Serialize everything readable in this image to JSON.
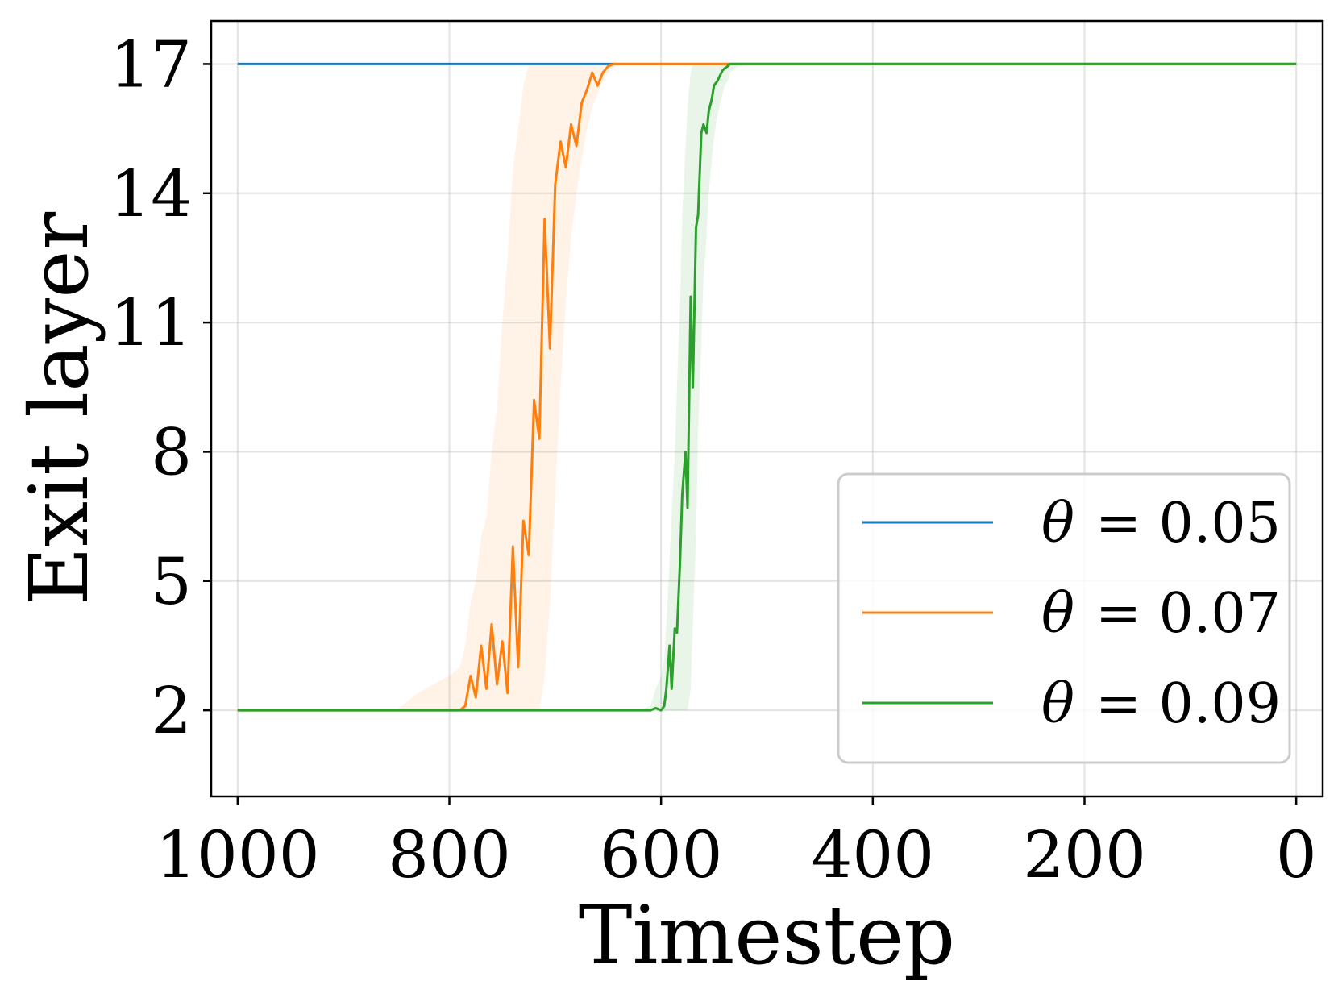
{
  "chart_data": {
    "type": "line",
    "xlabel": "Timestep",
    "ylabel": "Exit layer",
    "xlim": [
      1025,
      -25
    ],
    "ylim": [
      0,
      18
    ],
    "x_reversed": true,
    "xticks": [
      1000,
      800,
      600,
      400,
      200,
      0
    ],
    "xtick_labels": [
      "1000",
      "800",
      "600",
      "400",
      "200",
      "0"
    ],
    "yticks": [
      2,
      5,
      8,
      11,
      14,
      17
    ],
    "ytick_labels": [
      "2",
      "5",
      "8",
      "11",
      "14",
      "17"
    ],
    "grid": true,
    "legend_position": "lower-right",
    "series": [
      {
        "name": "θ = 0.05",
        "legend_symbol": "θ",
        "legend_value": "= 0.05",
        "color": "#1f77b4",
        "x": [
          1000,
          0
        ],
        "y": [
          17,
          17
        ]
      },
      {
        "name": "θ = 0.07",
        "legend_symbol": "θ",
        "legend_value": "= 0.07",
        "color": "#ff7f0e",
        "band_color": "#ff7f0e",
        "x": [
          1000,
          850,
          830,
          815,
          800,
          790,
          785,
          780,
          775,
          770,
          765,
          760,
          755,
          750,
          745,
          740,
          735,
          730,
          725,
          720,
          715,
          710,
          705,
          700,
          695,
          690,
          685,
          680,
          675,
          670,
          665,
          660,
          655,
          650,
          645,
          640,
          630,
          620,
          600,
          500,
          0
        ],
        "y": [
          2,
          2,
          2,
          2,
          2,
          2,
          2.1,
          2.8,
          2.3,
          3.5,
          2.5,
          4.0,
          2.6,
          3.6,
          2.4,
          5.8,
          3.0,
          6.4,
          5.6,
          9.2,
          8.3,
          13.4,
          10.4,
          14.2,
          15.2,
          14.6,
          15.6,
          15.1,
          16.1,
          16.4,
          16.8,
          16.5,
          16.8,
          16.95,
          17,
          17,
          17,
          17,
          17,
          17,
          17
        ],
        "band_upper": [
          2,
          2,
          2.4,
          2.6,
          2.8,
          3.0,
          3.5,
          4.5,
          5.0,
          6.0,
          6.5,
          8.0,
          9.0,
          11.0,
          12.5,
          14.5,
          15.5,
          16.5,
          17,
          17,
          17,
          17,
          17,
          17,
          17,
          17,
          17,
          17,
          17,
          17,
          17,
          17,
          17,
          17,
          17,
          17,
          17,
          17,
          17,
          17,
          17
        ],
        "band_lower": [
          2,
          2,
          2,
          2,
          2,
          2,
          2,
          2,
          2,
          2,
          2,
          2,
          2,
          2,
          2,
          2,
          2,
          2,
          2,
          2,
          2,
          2.8,
          4.5,
          7.0,
          9.5,
          11.5,
          13.0,
          14.0,
          14.8,
          15.5,
          16.0,
          16.3,
          16.6,
          16.8,
          16.9,
          17,
          17,
          17,
          17,
          17,
          17
        ]
      },
      {
        "name": "θ = 0.09",
        "legend_symbol": "θ",
        "legend_value": "= 0.09",
        "color": "#2ca02c",
        "band_color": "#2ca02c",
        "x": [
          1000,
          620,
          610,
          605,
          600,
          597,
          595,
          592,
          590,
          587,
          585,
          582,
          580,
          577,
          575,
          572,
          570,
          567,
          565,
          562,
          560,
          557,
          555,
          552,
          550,
          547,
          545,
          542,
          540,
          537,
          535,
          530,
          525,
          520,
          500,
          400,
          0
        ],
        "y": [
          2,
          2,
          2,
          2.05,
          2.0,
          2.1,
          2.5,
          3.5,
          2.5,
          3.9,
          3.8,
          5.5,
          7.0,
          8.0,
          6.7,
          11.6,
          9.5,
          13.2,
          13.5,
          15.4,
          15.6,
          15.4,
          15.9,
          16.2,
          16.5,
          16.6,
          16.7,
          16.85,
          16.9,
          16.95,
          17,
          17,
          17,
          17,
          17,
          17,
          17
        ],
        "band_upper": [
          2,
          2,
          2.1,
          2.5,
          2.8,
          3.2,
          4.0,
          5.5,
          6.5,
          8.0,
          9.5,
          11.5,
          13.5,
          15.0,
          16.0,
          16.8,
          17,
          17,
          17,
          17,
          17,
          17,
          17,
          17,
          17,
          17,
          17,
          17,
          17,
          17,
          17,
          17,
          17,
          17,
          17,
          17,
          17
        ],
        "band_lower": [
          2,
          2,
          2,
          2,
          2,
          2,
          2,
          2,
          2,
          2,
          2,
          2,
          2,
          2,
          2,
          2.5,
          4.0,
          6.0,
          8.5,
          10.5,
          12.0,
          13.0,
          14.0,
          14.8,
          15.3,
          15.8,
          16.0,
          16.3,
          16.5,
          16.6,
          16.8,
          16.9,
          16.95,
          17,
          17,
          17,
          17
        ]
      }
    ]
  }
}
